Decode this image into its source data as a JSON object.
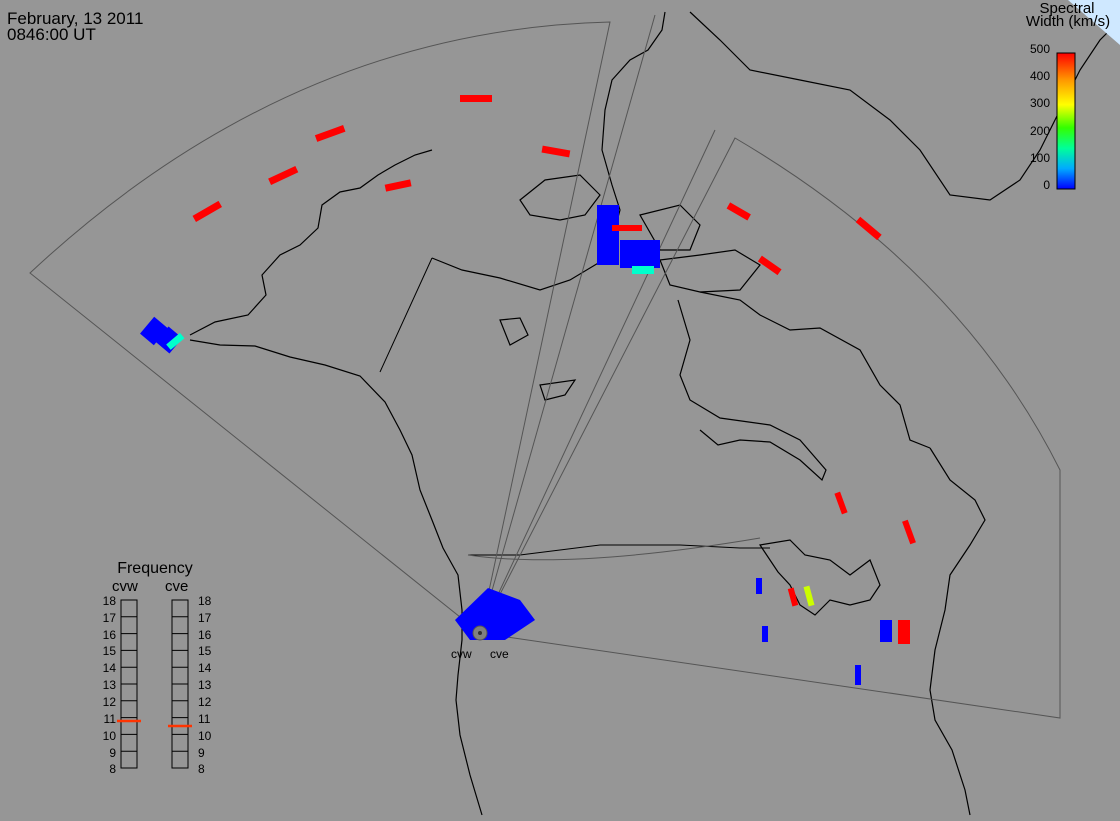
{
  "header": {
    "date": "February, 13 2011",
    "time": "0846:00 UT"
  },
  "colorbar": {
    "title_line1": "Spectral",
    "title_line2": "Width (km/s)",
    "ticks": [
      "500",
      "400",
      "300",
      "200",
      "100",
      "0"
    ],
    "colors": [
      "#ff0000",
      "#ff9900",
      "#ffff00",
      "#33ff00",
      "#00ff99",
      "#00aaff",
      "#0000ff"
    ]
  },
  "frequency_panel": {
    "title": "Frequency",
    "left_radar": "cvw",
    "right_radar": "cve",
    "ticks": [
      "18",
      "17",
      "16",
      "15",
      "14",
      "13",
      "12",
      "11",
      "10",
      "9",
      "8"
    ],
    "cvw_mhz": 10.8,
    "cve_mhz": 10.5,
    "marker_color": "#ff3300"
  },
  "radars": {
    "west_label": "cvw",
    "east_label": "cve"
  }
}
